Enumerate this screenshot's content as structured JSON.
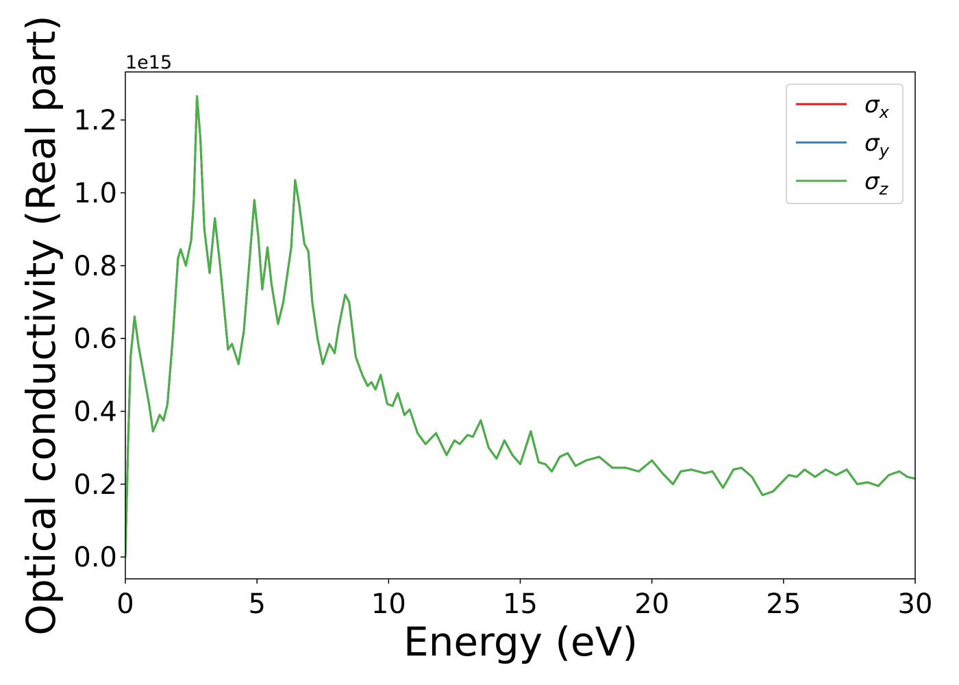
{
  "chart_data": {
    "type": "line",
    "xlabel": "Energy (eV)",
    "ylabel": "Optical conductivity (Real part)",
    "y_offset_label": "1e15",
    "x": [
      0,
      0.1,
      0.2,
      0.35,
      0.5,
      0.7,
      0.9,
      1.05,
      1.2,
      1.3,
      1.45,
      1.6,
      1.8,
      2.0,
      2.1,
      2.3,
      2.5,
      2.6,
      2.72,
      2.85,
      3.0,
      3.2,
      3.4,
      3.6,
      3.9,
      4.05,
      4.3,
      4.5,
      4.7,
      4.9,
      5.05,
      5.2,
      5.4,
      5.55,
      5.8,
      6.0,
      6.2,
      6.3,
      6.45,
      6.6,
      6.8,
      6.95,
      7.1,
      7.3,
      7.5,
      7.75,
      7.95,
      8.1,
      8.35,
      8.5,
      8.75,
      9.0,
      9.2,
      9.35,
      9.5,
      9.7,
      9.95,
      10.15,
      10.35,
      10.6,
      10.8,
      11.1,
      11.4,
      11.8,
      12.2,
      12.5,
      12.7,
      13.0,
      13.2,
      13.5,
      13.8,
      14.1,
      14.4,
      14.7,
      15.0,
      15.4,
      15.7,
      15.95,
      16.2,
      16.5,
      16.8,
      17.1,
      17.5,
      18.0,
      18.5,
      19.0,
      19.5,
      20.0,
      20.4,
      20.8,
      21.1,
      21.5,
      22.0,
      22.3,
      22.7,
      23.1,
      23.4,
      23.8,
      24.2,
      24.6,
      25.2,
      25.5,
      25.8,
      26.2,
      26.6,
      27.0,
      27.4,
      27.8,
      28.2,
      28.6,
      29.0,
      29.4,
      29.7,
      30
    ],
    "series": [
      {
        "name": "σx",
        "color": "#e41a1c",
        "values": [
          0,
          0.3,
          0.55,
          0.66,
          0.58,
          0.5,
          0.42,
          0.345,
          0.37,
          0.39,
          0.375,
          0.42,
          0.6,
          0.82,
          0.845,
          0.8,
          0.87,
          0.98,
          1.265,
          1.15,
          0.9,
          0.78,
          0.93,
          0.8,
          0.57,
          0.585,
          0.53,
          0.62,
          0.8,
          0.98,
          0.88,
          0.735,
          0.85,
          0.75,
          0.64,
          0.7,
          0.8,
          0.85,
          1.035,
          0.97,
          0.86,
          0.84,
          0.7,
          0.6,
          0.53,
          0.585,
          0.56,
          0.63,
          0.72,
          0.7,
          0.55,
          0.5,
          0.47,
          0.48,
          0.46,
          0.5,
          0.42,
          0.415,
          0.45,
          0.39,
          0.405,
          0.34,
          0.31,
          0.34,
          0.28,
          0.32,
          0.31,
          0.335,
          0.33,
          0.375,
          0.3,
          0.27,
          0.32,
          0.28,
          0.255,
          0.345,
          0.26,
          0.255,
          0.235,
          0.275,
          0.285,
          0.25,
          0.265,
          0.275,
          0.245,
          0.245,
          0.235,
          0.265,
          0.23,
          0.2,
          0.235,
          0.24,
          0.23,
          0.235,
          0.19,
          0.24,
          0.245,
          0.22,
          0.17,
          0.18,
          0.225,
          0.22,
          0.24,
          0.22,
          0.24,
          0.225,
          0.24,
          0.2,
          0.205,
          0.195,
          0.225,
          0.235,
          0.22,
          0.215
        ]
      },
      {
        "name": "σy",
        "color": "#377eb8",
        "values": [
          0,
          0.3,
          0.55,
          0.66,
          0.58,
          0.5,
          0.42,
          0.345,
          0.37,
          0.39,
          0.375,
          0.42,
          0.6,
          0.82,
          0.845,
          0.8,
          0.87,
          0.98,
          1.265,
          1.15,
          0.9,
          0.78,
          0.93,
          0.8,
          0.57,
          0.585,
          0.53,
          0.62,
          0.8,
          0.98,
          0.88,
          0.735,
          0.85,
          0.75,
          0.64,
          0.7,
          0.8,
          0.85,
          1.035,
          0.97,
          0.86,
          0.84,
          0.7,
          0.6,
          0.53,
          0.585,
          0.56,
          0.63,
          0.72,
          0.7,
          0.55,
          0.5,
          0.47,
          0.48,
          0.46,
          0.5,
          0.42,
          0.415,
          0.45,
          0.39,
          0.405,
          0.34,
          0.31,
          0.34,
          0.28,
          0.32,
          0.31,
          0.335,
          0.33,
          0.375,
          0.3,
          0.27,
          0.32,
          0.28,
          0.255,
          0.345,
          0.26,
          0.255,
          0.235,
          0.275,
          0.285,
          0.25,
          0.265,
          0.275,
          0.245,
          0.245,
          0.235,
          0.265,
          0.23,
          0.2,
          0.235,
          0.24,
          0.23,
          0.235,
          0.19,
          0.24,
          0.245,
          0.22,
          0.17,
          0.18,
          0.225,
          0.22,
          0.24,
          0.22,
          0.24,
          0.225,
          0.24,
          0.2,
          0.205,
          0.195,
          0.225,
          0.235,
          0.22,
          0.215
        ]
      },
      {
        "name": "σz",
        "color": "#4daf4a",
        "values": [
          0,
          0.3,
          0.55,
          0.66,
          0.58,
          0.5,
          0.42,
          0.345,
          0.37,
          0.39,
          0.375,
          0.42,
          0.6,
          0.82,
          0.845,
          0.8,
          0.87,
          0.98,
          1.265,
          1.15,
          0.9,
          0.78,
          0.93,
          0.8,
          0.57,
          0.585,
          0.53,
          0.62,
          0.8,
          0.98,
          0.88,
          0.735,
          0.85,
          0.75,
          0.64,
          0.7,
          0.8,
          0.85,
          1.035,
          0.97,
          0.86,
          0.84,
          0.7,
          0.6,
          0.53,
          0.585,
          0.56,
          0.63,
          0.72,
          0.7,
          0.55,
          0.5,
          0.47,
          0.48,
          0.46,
          0.5,
          0.42,
          0.415,
          0.45,
          0.39,
          0.405,
          0.34,
          0.31,
          0.34,
          0.28,
          0.32,
          0.31,
          0.335,
          0.33,
          0.375,
          0.3,
          0.27,
          0.32,
          0.28,
          0.255,
          0.345,
          0.26,
          0.255,
          0.235,
          0.275,
          0.285,
          0.25,
          0.265,
          0.275,
          0.245,
          0.245,
          0.235,
          0.265,
          0.23,
          0.2,
          0.235,
          0.24,
          0.23,
          0.235,
          0.19,
          0.24,
          0.245,
          0.22,
          0.17,
          0.18,
          0.225,
          0.22,
          0.24,
          0.22,
          0.24,
          0.225,
          0.24,
          0.2,
          0.205,
          0.195,
          0.225,
          0.235,
          0.22,
          0.215
        ]
      }
    ],
    "xlim": [
      0,
      30
    ],
    "xticks": [
      0,
      5,
      10,
      15,
      20,
      25,
      30
    ],
    "ylim": [
      -0.06,
      1.332
    ],
    "yticks": [
      {
        "value": 0,
        "label": "0.0"
      },
      0.2,
      0.4,
      0.6,
      0.8,
      {
        "value": 1,
        "label": "1.0"
      },
      1.2
    ],
    "grid": false,
    "legend": "upper right"
  }
}
